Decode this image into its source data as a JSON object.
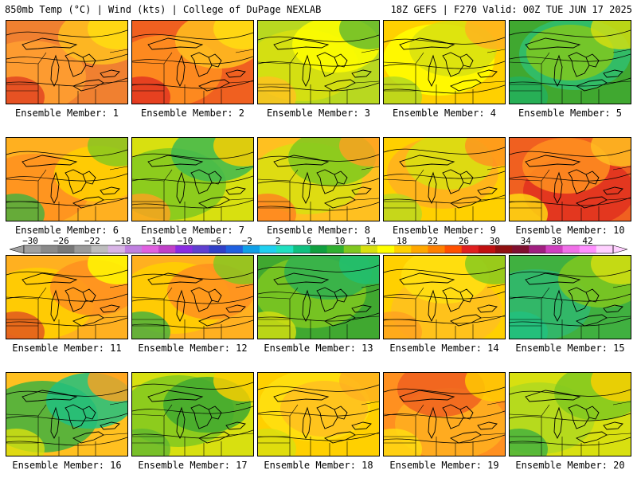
{
  "header": {
    "left": "850mb Temp (°C) | Wind (kts) | College of DuPage NEXLAB",
    "right": "18Z GEFS | F270 Valid: 00Z TUE JUN 17 2025"
  },
  "colorbar": {
    "labels": [
      "−30",
      "−26",
      "−22",
      "−18",
      "−14",
      "−10",
      "−6",
      "−2",
      "2",
      "6",
      "10",
      "14",
      "18",
      "22",
      "26",
      "30",
      "34",
      "38",
      "42"
    ],
    "colors": [
      "#a0a0a0",
      "#8a8a8a",
      "#787878",
      "#9a9a9a",
      "#bdbdbd",
      "#d8b4e6",
      "#c080e0",
      "#e060e0",
      "#c040c8",
      "#8a2be2",
      "#6040d0",
      "#3040c8",
      "#2060e0",
      "#10a0e8",
      "#20d0f0",
      "#20e0c0",
      "#10c080",
      "#10a040",
      "#30b030",
      "#80c820",
      "#d8e010",
      "#ffff00",
      "#ffd000",
      "#ffa800",
      "#ff8000",
      "#ff5000",
      "#e02020",
      "#c01010",
      "#901010",
      "#801030",
      "#a02080",
      "#d040c0",
      "#f070e8",
      "#ff90ff",
      "#ffd0ff"
    ]
  },
  "panels": [
    {
      "label": "Ensemble Member: 1",
      "colors": [
        "#f08030",
        "#ffa030",
        "#ffc020",
        "#ffe010",
        "#e04020"
      ]
    },
    {
      "label": "Ensemble Member: 2",
      "colors": [
        "#f06020",
        "#ff9020",
        "#ffc020",
        "#ffe010",
        "#e03020"
      ]
    },
    {
      "label": "Ensemble Member: 3",
      "colors": [
        "#b8d820",
        "#d8e010",
        "#ffff00",
        "#60b830",
        "#ffc020"
      ]
    },
    {
      "label": "Ensemble Member: 4",
      "colors": [
        "#ffd000",
        "#ffff00",
        "#d8e010",
        "#ffb020",
        "#b0d820"
      ]
    },
    {
      "label": "Ensemble Member: 5",
      "colors": [
        "#40a830",
        "#30c070",
        "#80c820",
        "#d8e010",
        "#20b060"
      ]
    },
    {
      "label": "Ensemble Member: 6",
      "colors": [
        "#ffb020",
        "#ff9020",
        "#ffd000",
        "#80c820",
        "#40b040"
      ]
    },
    {
      "label": "Ensemble Member: 7",
      "colors": [
        "#d8e010",
        "#80c820",
        "#40b850",
        "#ffd000",
        "#ffa020"
      ]
    },
    {
      "label": "Ensemble Member: 8",
      "colors": [
        "#ffc020",
        "#d8e010",
        "#80c820",
        "#ffa020",
        "#ff8020"
      ]
    },
    {
      "label": "Ensemble Member: 9",
      "colors": [
        "#ffd000",
        "#ffb020",
        "#d8e010",
        "#ff9020",
        "#b8d820"
      ]
    },
    {
      "label": "Ensemble Member: 10",
      "colors": [
        "#f06020",
        "#e03020",
        "#ff9020",
        "#ffc020",
        "#ffe010"
      ]
    },
    {
      "label": "Ensemble Member: 11",
      "colors": [
        "#ffb020",
        "#ffd000",
        "#ff9020",
        "#ffff00",
        "#e05020"
      ]
    },
    {
      "label": "Ensemble Member: 12",
      "colors": [
        "#ffb020",
        "#ffd000",
        "#ff9020",
        "#80c820",
        "#40b040"
      ]
    },
    {
      "label": "Ensemble Member: 13",
      "colors": [
        "#40a830",
        "#80c820",
        "#30b050",
        "#20c070",
        "#d8e010"
      ]
    },
    {
      "label": "Ensemble Member: 14",
      "colors": [
        "#ffd000",
        "#ffc020",
        "#ffe010",
        "#80c820",
        "#ffa020"
      ]
    },
    {
      "label": "Ensemble Member: 15",
      "colors": [
        "#40b040",
        "#30b870",
        "#80c820",
        "#d8e010",
        "#20c080"
      ]
    },
    {
      "label": "Ensemble Member: 16",
      "colors": [
        "#ffc020",
        "#40b040",
        "#20c080",
        "#ffa020",
        "#d8e010"
      ]
    },
    {
      "label": "Ensemble Member: 17",
      "colors": [
        "#d8e010",
        "#80c820",
        "#40a830",
        "#ffd000",
        "#60b830"
      ]
    },
    {
      "label": "Ensemble Member: 18",
      "colors": [
        "#ffd000",
        "#ffe010",
        "#ffc020",
        "#ffb020",
        "#d8e010"
      ]
    },
    {
      "label": "Ensemble Member: 19",
      "colors": [
        "#ff9020",
        "#ffb020",
        "#f06020",
        "#ffd000",
        "#ffe010"
      ]
    },
    {
      "label": "Ensemble Member: 20",
      "colors": [
        "#d8e010",
        "#b0d820",
        "#80c820",
        "#ffd000",
        "#40b040"
      ]
    }
  ]
}
